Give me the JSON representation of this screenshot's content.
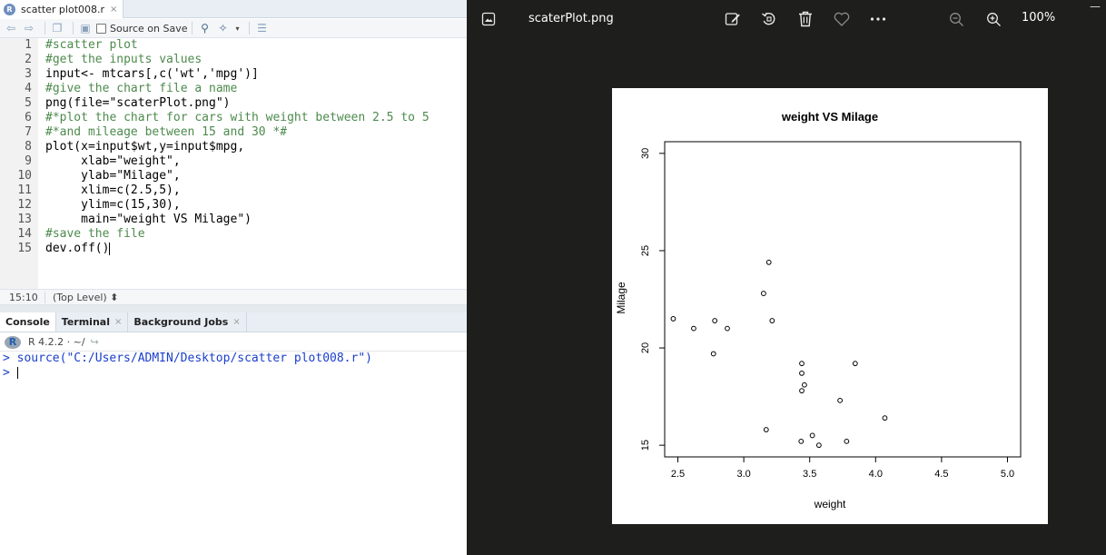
{
  "rstudio": {
    "file_tab": {
      "name": "scatter plot008.r",
      "close": "×"
    },
    "toolbar": {
      "source_on_save": "Source on Save"
    },
    "code_lines": [
      "#scatter plot",
      "#get the inputs values",
      "input<- mtcars[,c('wt','mpg')]",
      "#give the chart file a name",
      "png(file=\"scaterPlot.png\")",
      "#*plot the chart for cars with weight between 2.5 to 5",
      "#*and mileage between 15 and 30 *#",
      "plot(x=input$wt,y=input$mpg,",
      "     xlab=\"weight\",",
      "     ylab=\"Milage\",",
      "     xlim=c(2.5,5),",
      "     ylim=c(15,30),",
      "     main=\"weight VS Milage\")",
      "#save the file",
      "dev.off()"
    ],
    "status": {
      "position": "15:10",
      "scope": "(Top Level) ⬍"
    },
    "console_tabs": [
      {
        "label": "Console",
        "closable": false
      },
      {
        "label": "Terminal",
        "closable": true
      },
      {
        "label": "Background Jobs",
        "closable": true
      }
    ],
    "console_info": "R 4.2.2 · ~/",
    "console_lines": [
      "> source(\"C:/Users/ADMIN/Desktop/scatter plot008.r\")",
      "> "
    ]
  },
  "viewer": {
    "file_name": "scaterPlot.png",
    "zoom": "100%",
    "minimize": "—",
    "icons": [
      "gallery-icon",
      "edit-image-icon",
      "rotate-icon",
      "delete-icon",
      "favorite-icon",
      "more-icon",
      "zoom-out-icon",
      "zoom-in-icon"
    ]
  },
  "chart_data": {
    "type": "scatter",
    "title": "weight VS Milage",
    "xlabel": "weight",
    "ylabel": "Milage",
    "xlim": [
      2.5,
      5
    ],
    "ylim": [
      15,
      30
    ],
    "xticks": [
      "2.5",
      "3.0",
      "3.5",
      "4.0",
      "4.5",
      "5.0"
    ],
    "yticks": [
      "15",
      "20",
      "25",
      "30"
    ],
    "grid": false,
    "points": [
      [
        2.465,
        21.5
      ],
      [
        2.62,
        21.0
      ],
      [
        2.77,
        19.7
      ],
      [
        2.78,
        21.4
      ],
      [
        2.875,
        21.0
      ],
      [
        3.15,
        22.8
      ],
      [
        3.17,
        15.8
      ],
      [
        3.19,
        24.4
      ],
      [
        3.215,
        21.4
      ],
      [
        3.435,
        15.2
      ],
      [
        3.44,
        18.7
      ],
      [
        3.44,
        19.2
      ],
      [
        3.44,
        17.8
      ],
      [
        3.46,
        18.1
      ],
      [
        3.52,
        15.5
      ],
      [
        3.57,
        15.0
      ],
      [
        3.73,
        17.3
      ],
      [
        3.78,
        15.2
      ],
      [
        3.845,
        19.2
      ],
      [
        4.07,
        16.4
      ]
    ]
  }
}
